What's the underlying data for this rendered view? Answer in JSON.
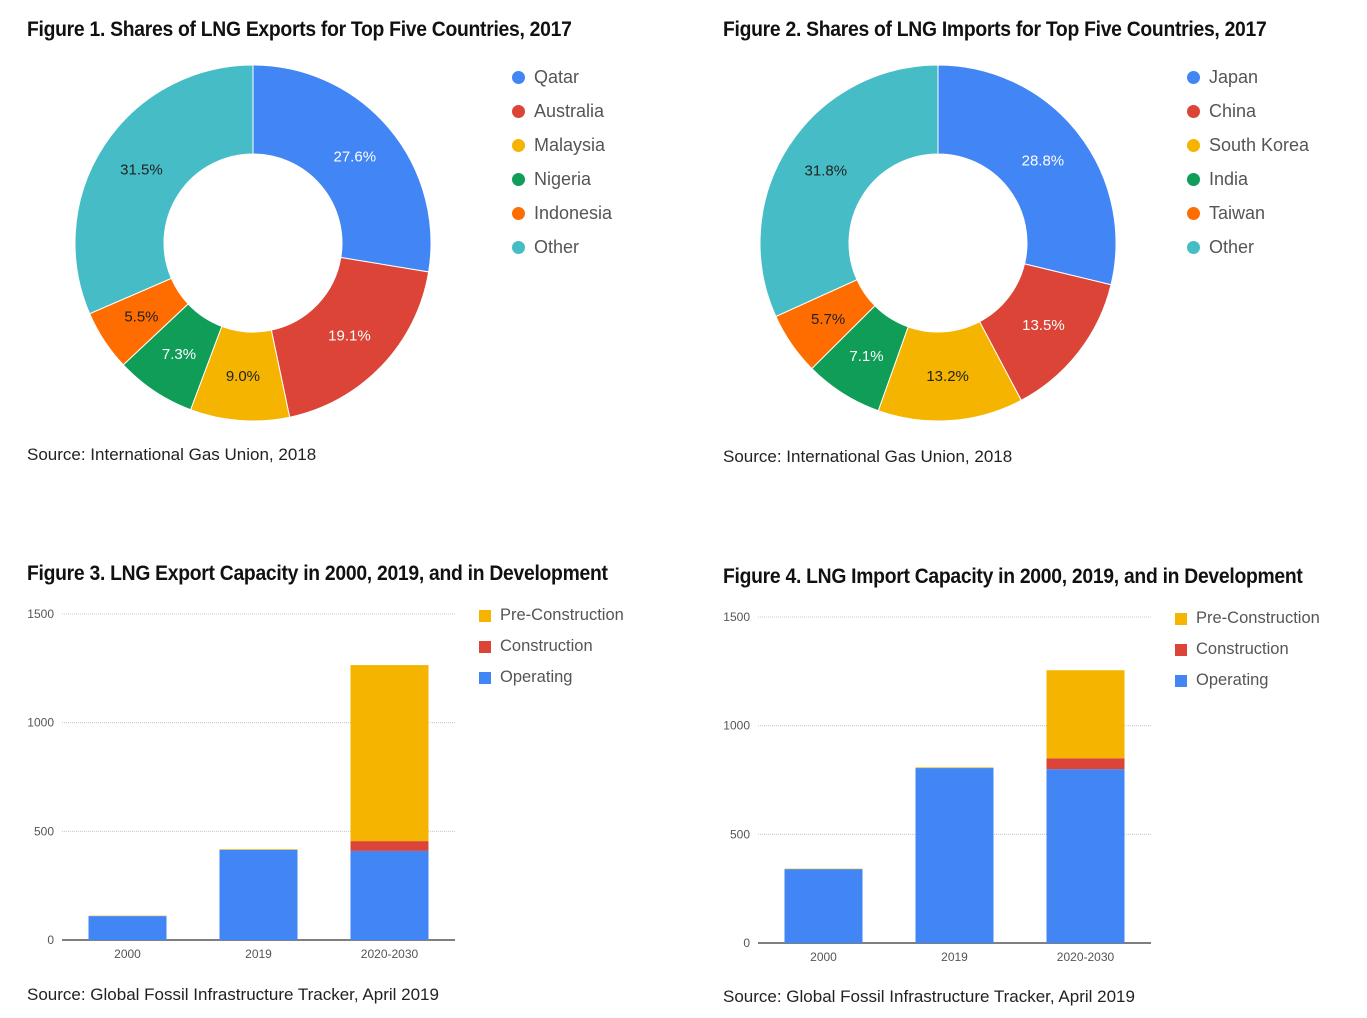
{
  "chart_data": [
    {
      "type": "pie",
      "title": "Figure 1. Shares of LNG Exports for Top Five Countries, 2017",
      "source": "Source: International Gas Union, 2018",
      "donut": true,
      "slices": [
        {
          "label": "Qatar",
          "value": 27.6,
          "display": "27.6%",
          "color": "#4285f4",
          "text_color": "#ffffff"
        },
        {
          "label": "Australia",
          "value": 19.1,
          "display": "19.1%",
          "color": "#db4437",
          "text_color": "#ffffff"
        },
        {
          "label": "Malaysia",
          "value": 9.0,
          "display": "9.0%",
          "color": "#f4b400",
          "text_color": "#222222"
        },
        {
          "label": "Nigeria",
          "value": 7.3,
          "display": "7.3%",
          "color": "#0f9d58",
          "text_color": "#ffffff"
        },
        {
          "label": "Indonesia",
          "value": 5.5,
          "display": "5.5%",
          "color": "#ff6d00",
          "text_color": "#222222"
        },
        {
          "label": "Other",
          "value": 31.5,
          "display": "31.5%",
          "color": "#46bdc6",
          "text_color": "#222222"
        }
      ],
      "legend_position": "right"
    },
    {
      "type": "pie",
      "title": "Figure 2. Shares of LNG Imports for Top Five Countries, 2017",
      "source": "Source: International Gas Union, 2018",
      "donut": true,
      "slices": [
        {
          "label": "Japan",
          "value": 28.8,
          "display": "28.8%",
          "color": "#4285f4",
          "text_color": "#ffffff"
        },
        {
          "label": "China",
          "value": 13.5,
          "display": "13.5%",
          "color": "#db4437",
          "text_color": "#ffffff"
        },
        {
          "label": "South Korea",
          "value": 13.2,
          "display": "13.2%",
          "color": "#f4b400",
          "text_color": "#222222"
        },
        {
          "label": "India",
          "value": 7.1,
          "display": "7.1%",
          "color": "#0f9d58",
          "text_color": "#ffffff"
        },
        {
          "label": "Taiwan",
          "value": 5.7,
          "display": "5.7%",
          "color": "#ff6d00",
          "text_color": "#222222"
        },
        {
          "label": "Other",
          "value": 31.8,
          "display": "31.8%",
          "color": "#46bdc6",
          "text_color": "#222222"
        }
      ],
      "legend_position": "right"
    },
    {
      "type": "bar",
      "stacked": true,
      "title": "Figure 3. LNG Export Capacity in 2000, 2019, and in Development",
      "source": "Source: Global Fossil Infrastructure Tracker, April 2019",
      "categories": [
        "2000",
        "2019",
        "2020-2030"
      ],
      "series": [
        {
          "name": "Operating",
          "color": "#4285f4",
          "values": [
            110,
            415,
            410
          ]
        },
        {
          "name": "Construction",
          "color": "#db4437",
          "values": [
            0,
            0,
            45
          ]
        },
        {
          "name": "Pre-Construction",
          "color": "#f4b400",
          "values": [
            2,
            3,
            810
          ]
        }
      ],
      "legend_order": [
        "Pre-Construction",
        "Construction",
        "Operating"
      ],
      "yticks": [
        "0",
        "500",
        "1000",
        "1500"
      ],
      "ylim": [
        0,
        1500
      ],
      "grid": true,
      "legend_position": "right"
    },
    {
      "type": "bar",
      "stacked": true,
      "title": "Figure 4. LNG Import Capacity in 2000, 2019, and in Development",
      "source": "Source: Global Fossil Infrastructure Tracker, April 2019",
      "categories": [
        "2000",
        "2019",
        "2020-2030"
      ],
      "series": [
        {
          "name": "Operating",
          "color": "#4285f4",
          "values": [
            340,
            805,
            800
          ]
        },
        {
          "name": "Construction",
          "color": "#db4437",
          "values": [
            0,
            0,
            50
          ]
        },
        {
          "name": "Pre-Construction",
          "color": "#f4b400",
          "values": [
            2,
            3,
            405
          ]
        }
      ],
      "legend_order": [
        "Pre-Construction",
        "Construction",
        "Operating"
      ],
      "yticks": [
        "0",
        "500",
        "1000",
        "1500"
      ],
      "ylim": [
        0,
        1500
      ],
      "grid": true,
      "legend_position": "right"
    }
  ]
}
